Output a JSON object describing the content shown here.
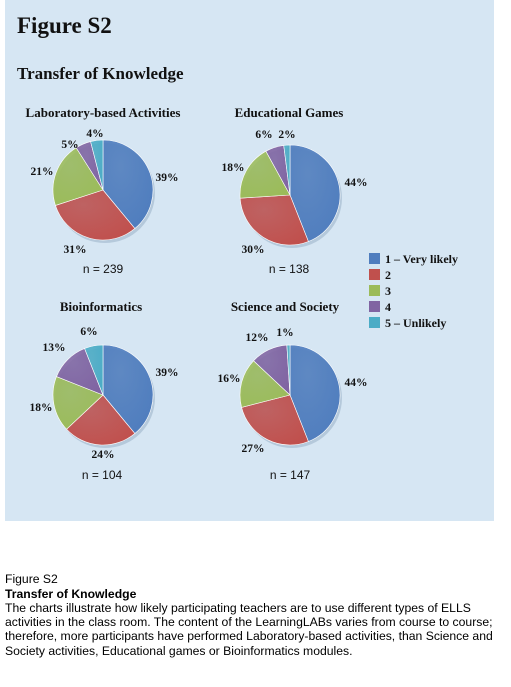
{
  "figure_label": "Figure S2",
  "chart_title": "Transfer of Knowledge",
  "legend": [
    {
      "label": "1 – Very likely",
      "color": "#4f7dbe"
    },
    {
      "label": "2",
      "color": "#c0504d"
    },
    {
      "label": "3",
      "color": "#9bbb59"
    },
    {
      "label": "4",
      "color": "#8064a2"
    },
    {
      "label": "5 – Unlikely",
      "color": "#4bacc6"
    }
  ],
  "chart_data": [
    {
      "type": "pie",
      "title": "Laboratory-based Activities",
      "n_label": "n = 239",
      "categories": [
        "1 – Very likely",
        "2",
        "3",
        "4",
        "5 – Unlikely"
      ],
      "values": [
        39,
        31,
        21,
        5,
        4
      ],
      "data_labels": [
        "39%",
        "31%",
        "21%",
        "5%",
        "4%"
      ]
    },
    {
      "type": "pie",
      "title": "Educational Games",
      "n_label": "n = 138",
      "categories": [
        "1 – Very likely",
        "2",
        "3",
        "4",
        "5 – Unlikely"
      ],
      "values": [
        44,
        30,
        18,
        6,
        2
      ],
      "data_labels": [
        "44%",
        "30%",
        "18%",
        "6%",
        "2%"
      ]
    },
    {
      "type": "pie",
      "title": "Bioinformatics",
      "n_label": "n = 104",
      "categories": [
        "1 – Very likely",
        "2",
        "3",
        "4",
        "5 – Unlikely"
      ],
      "values": [
        39,
        24,
        18,
        13,
        6
      ],
      "data_labels": [
        "39%",
        "24%",
        "18%",
        "13%",
        "6%"
      ]
    },
    {
      "type": "pie",
      "title": "Science and Society",
      "n_label": "n = 147",
      "categories": [
        "1 – Very likely",
        "2",
        "3",
        "4",
        "5 – Unlikely"
      ],
      "values": [
        44,
        27,
        16,
        12,
        1
      ],
      "data_labels": [
        "44%",
        "27%",
        "16%",
        "12%",
        "1%"
      ]
    }
  ],
  "caption": {
    "figure_label": "Figure S2",
    "title": "Transfer of Knowledge",
    "body": "The charts illustrate how likely participating teachers are to use different types of ELLS activities in the class room. The content of the LearningLABs varies from course to course; therefore, more participants have performed Laboratory-based activities, than Science and Society activities, Educational games or Bioinformatics modules."
  }
}
